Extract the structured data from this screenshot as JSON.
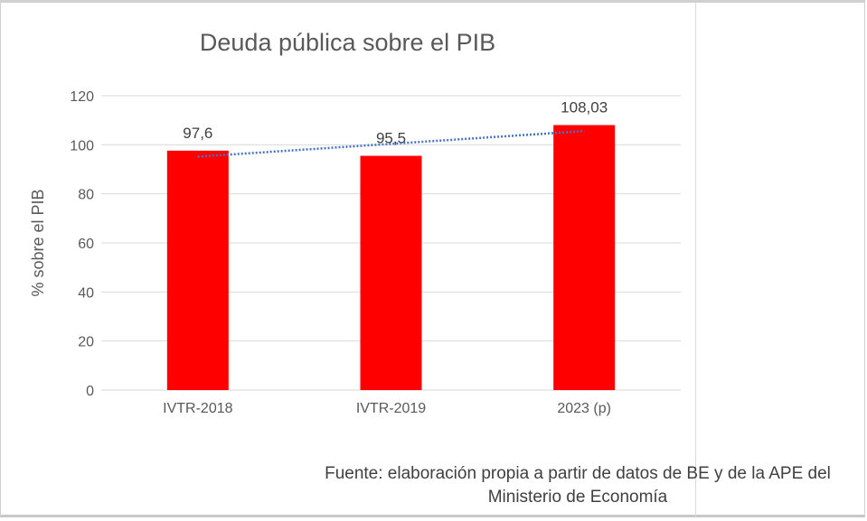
{
  "chart_data": {
    "type": "bar",
    "title": "Deuda pública sobre el PIB",
    "ylabel": "% sobre el PIB",
    "xlabel": "",
    "categories": [
      "IVTR-2018",
      "IVTR-2019",
      "2023 (p)"
    ],
    "values": [
      97.6,
      95.5,
      108.03
    ],
    "data_labels": [
      "97,6",
      "95,5",
      "108,03"
    ],
    "ylim": [
      0,
      120
    ],
    "yticks": [
      0,
      20,
      40,
      60,
      80,
      100,
      120
    ],
    "grid": true,
    "trendline": "linear",
    "colors": {
      "bar": "#ff0000",
      "trendline": "#4472c4",
      "grid": "#d9d9d9"
    }
  },
  "source": "Fuente: elaboración propia a partir de datos de BE y de la APE del Ministerio de Economía"
}
